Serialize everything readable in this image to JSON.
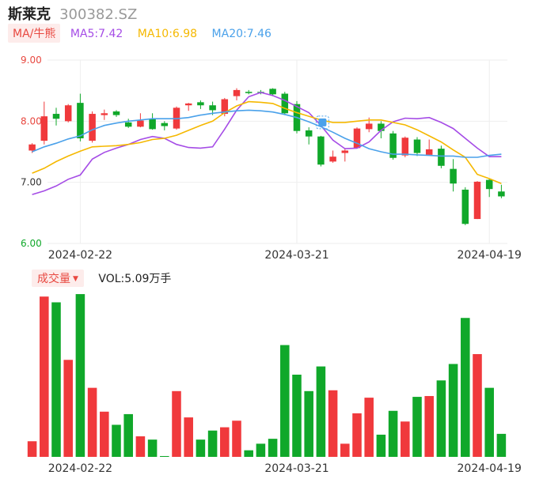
{
  "header": {
    "name": "斯莱克",
    "code": "300382.SZ"
  },
  "ma_legend": {
    "tag": "MA/牛熊",
    "ma5": "MA5:7.42",
    "ma10": "MA10:6.98",
    "ma20": "MA20:7.46"
  },
  "volume_legend": {
    "tag": "成交量",
    "value": "VOL:5.09万手"
  },
  "colors": {
    "up": "#f0393c",
    "down": "#10a82a",
    "ma5": "#a54ce6",
    "ma10": "#f5b800",
    "ma20": "#4aa1ea",
    "grid": "#eeeeee",
    "axis_text": "#333333",
    "price_label_high": "#e84840",
    "price_label_low": "#10a82a"
  },
  "chart_data": [
    {
      "type": "candlestick",
      "y_ticks": [
        "9.00",
        "8.00",
        "7.00",
        "6.00"
      ],
      "ylim": [
        6.0,
        9.0
      ],
      "x_tick_labels": [
        "2024-02-22",
        "2024-03-21",
        "2024-04-19"
      ],
      "x_tick_index": [
        4,
        22,
        38
      ],
      "grid": true,
      "candles": [
        {
          "open": 7.52,
          "close": 7.62,
          "high": 7.64,
          "low": 7.48
        },
        {
          "open": 7.68,
          "close": 8.08,
          "high": 8.32,
          "low": 7.62
        },
        {
          "open": 8.12,
          "close": 8.04,
          "high": 8.22,
          "low": 7.93
        },
        {
          "open": 8.0,
          "close": 8.26,
          "high": 8.28,
          "low": 7.98
        },
        {
          "open": 8.3,
          "close": 7.72,
          "high": 8.45,
          "low": 7.67
        },
        {
          "open": 7.68,
          "close": 8.12,
          "high": 8.16,
          "low": 7.65
        },
        {
          "open": 8.1,
          "close": 8.13,
          "high": 8.19,
          "low": 8.02
        },
        {
          "open": 8.16,
          "close": 8.1,
          "high": 8.18,
          "low": 8.07
        },
        {
          "open": 7.98,
          "close": 7.91,
          "high": 8.04,
          "low": 7.89
        },
        {
          "open": 7.91,
          "close": 8.01,
          "high": 8.13,
          "low": 7.9
        },
        {
          "open": 8.04,
          "close": 7.87,
          "high": 8.13,
          "low": 7.86
        },
        {
          "open": 7.97,
          "close": 7.92,
          "high": 8.0,
          "low": 7.85
        },
        {
          "open": 7.88,
          "close": 8.22,
          "high": 8.24,
          "low": 7.86
        },
        {
          "open": 8.26,
          "close": 8.29,
          "high": 8.3,
          "low": 8.17
        },
        {
          "open": 8.31,
          "close": 8.26,
          "high": 8.34,
          "low": 8.2
        },
        {
          "open": 8.26,
          "close": 8.18,
          "high": 8.32,
          "low": 8.1
        },
        {
          "open": 8.12,
          "close": 8.36,
          "high": 8.38,
          "low": 8.08
        },
        {
          "open": 8.41,
          "close": 8.51,
          "high": 8.54,
          "low": 8.34
        },
        {
          "open": 8.48,
          "close": 8.46,
          "high": 8.51,
          "low": 8.44
        },
        {
          "open": 8.48,
          "close": 8.47,
          "high": 8.51,
          "low": 8.44
        },
        {
          "open": 8.53,
          "close": 8.44,
          "high": 8.54,
          "low": 8.41
        },
        {
          "open": 8.45,
          "close": 8.13,
          "high": 8.48,
          "low": 8.1
        },
        {
          "open": 8.28,
          "close": 7.84,
          "high": 8.33,
          "low": 7.8
        },
        {
          "open": 7.85,
          "close": 7.75,
          "high": 7.9,
          "low": 7.62
        },
        {
          "open": 7.75,
          "close": 7.29,
          "high": 7.76,
          "low": 7.26
        },
        {
          "open": 7.34,
          "close": 7.42,
          "high": 7.52,
          "low": 7.32
        },
        {
          "open": 7.48,
          "close": 7.52,
          "high": 7.56,
          "low": 7.34
        },
        {
          "open": 7.56,
          "close": 7.88,
          "high": 7.9,
          "low": 7.55
        },
        {
          "open": 7.87,
          "close": 7.96,
          "high": 8.06,
          "low": 7.82
        },
        {
          "open": 7.96,
          "close": 7.84,
          "high": 8.0,
          "low": 7.72
        },
        {
          "open": 7.8,
          "close": 7.4,
          "high": 7.84,
          "low": 7.37
        },
        {
          "open": 7.44,
          "close": 7.73,
          "high": 7.75,
          "low": 7.41
        },
        {
          "open": 7.7,
          "close": 7.48,
          "high": 7.74,
          "low": 7.43
        },
        {
          "open": 7.45,
          "close": 7.54,
          "high": 7.7,
          "low": 7.44
        },
        {
          "open": 7.55,
          "close": 7.27,
          "high": 7.6,
          "low": 7.23
        },
        {
          "open": 7.22,
          "close": 6.98,
          "high": 7.38,
          "low": 6.85
        },
        {
          "open": 6.88,
          "close": 6.32,
          "high": 6.92,
          "low": 6.3
        },
        {
          "open": 6.4,
          "close": 7.01,
          "high": 7.02,
          "low": 6.4
        },
        {
          "open": 7.04,
          "close": 6.89,
          "high": 7.06,
          "low": 6.76
        },
        {
          "open": 6.85,
          "close": 6.77,
          "high": 6.96,
          "low": 6.74
        }
      ],
      "ma_series": [
        {
          "name": "MA5",
          "values": [
            6.8,
            6.86,
            6.94,
            7.05,
            7.12,
            7.38,
            7.49,
            7.56,
            7.62,
            7.7,
            7.75,
            7.72,
            7.62,
            7.57,
            7.56,
            7.58,
            7.87,
            8.18,
            8.4,
            8.47,
            8.42,
            8.34,
            8.24,
            8.14,
            7.93,
            7.69,
            7.55,
            7.56,
            7.66,
            7.85,
            7.99,
            8.05,
            8.04,
            8.06,
            7.98,
            7.88,
            7.72,
            7.56,
            7.42,
            7.42
          ]
        },
        {
          "name": "MA10",
          "values": [
            7.15,
            7.23,
            7.34,
            7.43,
            7.51,
            7.58,
            7.59,
            7.6,
            7.62,
            7.65,
            7.7,
            7.72,
            7.77,
            7.85,
            7.93,
            8.0,
            8.14,
            8.25,
            8.32,
            8.31,
            8.29,
            8.21,
            8.14,
            8.08,
            8.02,
            7.98,
            7.98,
            8.0,
            8.02,
            8.02,
            7.98,
            7.94,
            7.86,
            7.76,
            7.66,
            7.53,
            7.41,
            7.13,
            7.06,
            6.98
          ]
        },
        {
          "name": "MA20",
          "values": [
            7.5,
            7.58,
            7.64,
            7.71,
            7.76,
            7.86,
            7.93,
            7.97,
            8.0,
            8.02,
            8.04,
            8.04,
            8.04,
            8.06,
            8.1,
            8.13,
            8.15,
            8.17,
            8.18,
            8.17,
            8.15,
            8.11,
            8.06,
            7.99,
            7.91,
            7.82,
            7.72,
            7.64,
            7.55,
            7.5,
            7.46,
            7.46,
            7.45,
            7.44,
            7.43,
            7.43,
            7.41,
            7.41,
            7.44,
            7.46
          ]
        }
      ]
    },
    {
      "type": "bar",
      "title": "成交量",
      "x_tick_labels": [
        "2024-02-22",
        "2024-03-21",
        "2024-04-19"
      ],
      "x_tick_index": [
        4,
        22,
        38
      ],
      "volumes": [
        1.9,
        19.5,
        18.8,
        11.8,
        19.8,
        8.4,
        5.5,
        3.9,
        5.2,
        2.5,
        2.1,
        0.1,
        8.0,
        4.8,
        2.1,
        3.2,
        3.6,
        4.4,
        0.8,
        1.6,
        2.2,
        13.6,
        10.0,
        8.0,
        11.0,
        8.1,
        1.6,
        5.3,
        7.2,
        2.7,
        5.6,
        4.3,
        7.3,
        7.4,
        9.3,
        11.3,
        16.9,
        12.5,
        8.4,
        2.8
      ],
      "ylim": [
        0,
        20
      ]
    }
  ]
}
